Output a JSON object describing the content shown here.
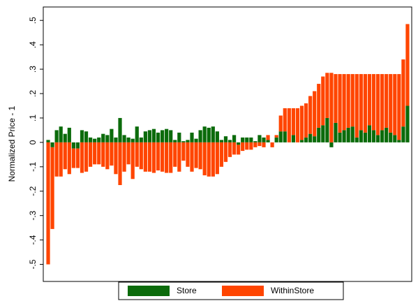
{
  "chart_data": {
    "type": "stacked-bar",
    "y_label": "Normalized Price - 1",
    "ylim": [
      -0.57,
      0.555
    ],
    "yticks": [
      {
        "value": -0.5,
        "label": "-.5"
      },
      {
        "value": -0.4,
        "label": "-.4"
      },
      {
        "value": -0.3,
        "label": "-.3"
      },
      {
        "value": -0.2,
        "label": "-.2"
      },
      {
        "value": -0.1,
        "label": "-.1"
      },
      0,
      {
        "value": 0.1,
        "label": ".1"
      },
      {
        "value": 0.2,
        "label": ".2"
      },
      {
        "value": 0.3,
        "label": ".3"
      },
      {
        "value": 0.4,
        "label": ".4"
      },
      {
        "value": 0.5,
        "label": ".5"
      }
    ],
    "legend": "bottom",
    "series": [
      {
        "name": "Store",
        "color": "#0b6b0b",
        "values": [
          0.01,
          -0.02,
          0.05,
          0.065,
          0.035,
          0.06,
          -0.025,
          -0.025,
          0.05,
          0.045,
          0.02,
          0.015,
          0.02,
          0.035,
          0.03,
          0.055,
          0.02,
          0.1,
          0.03,
          0.02,
          0.015,
          0.065,
          0.02,
          0.045,
          0.05,
          0.055,
          0.04,
          0.05,
          0.055,
          0.05,
          0.01,
          0.04,
          0.005,
          0.01,
          0.04,
          0.015,
          0.05,
          0.065,
          0.06,
          0.065,
          0.045,
          0.01,
          0.025,
          0.01,
          0.03,
          -0.01,
          0.02,
          0.02,
          0.02,
          0.005,
          0.03,
          0.02,
          0.01,
          0.0,
          0.02,
          0.045,
          0.045,
          0.0,
          0.03,
          0.0,
          0.01,
          0.02,
          0.035,
          0.025,
          0.06,
          0.07,
          0.1,
          -0.02,
          0.08,
          0.04,
          0.05,
          0.06,
          0.065,
          0.02,
          0.05,
          0.04,
          0.07,
          0.05,
          0.03,
          0.05,
          0.06,
          0.04,
          0.03,
          0.01,
          0.065,
          0.15
        ]
      },
      {
        "name": "WithinStore",
        "color": "#ff4500",
        "values": [
          -0.5,
          -0.335,
          -0.14,
          -0.14,
          -0.11,
          -0.13,
          -0.08,
          -0.08,
          -0.125,
          -0.12,
          -0.1,
          -0.09,
          -0.09,
          -0.1,
          -0.11,
          -0.095,
          -0.13,
          -0.175,
          -0.12,
          -0.09,
          -0.15,
          -0.1,
          -0.11,
          -0.12,
          -0.12,
          -0.125,
          -0.115,
          -0.12,
          -0.125,
          -0.125,
          -0.1,
          -0.12,
          -0.075,
          -0.1,
          -0.12,
          -0.105,
          -0.11,
          -0.135,
          -0.14,
          -0.14,
          -0.13,
          -0.1,
          -0.08,
          -0.06,
          -0.05,
          -0.04,
          -0.035,
          -0.03,
          -0.03,
          -0.02,
          -0.015,
          -0.02,
          0.02,
          -0.02,
          0.01,
          0.065,
          0.095,
          0.14,
          0.11,
          0.14,
          0.14,
          0.14,
          0.155,
          0.185,
          0.18,
          0.2,
          0.185,
          0.285,
          0.2,
          0.24,
          0.23,
          0.22,
          0.215,
          0.26,
          0.23,
          0.24,
          0.21,
          0.23,
          0.25,
          0.23,
          0.22,
          0.24,
          0.25,
          0.27,
          0.275,
          0.335
        ]
      }
    ]
  }
}
